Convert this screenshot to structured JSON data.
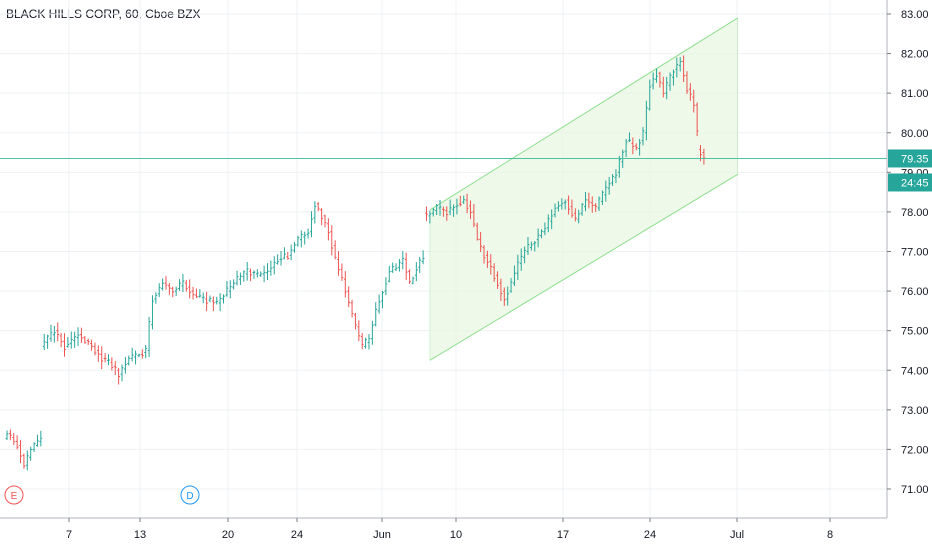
{
  "chart": {
    "title": "BLACK HILLS CORP, 60, Cboe BZX"
  },
  "colors": {
    "up": "#26a69a",
    "down": "#ef5350",
    "grid": "#eef0f3",
    "channel_line": "#8fe08f",
    "channel_fill": "#e8f7e3",
    "hline": "#4fc3a1",
    "price_tag": "#26a69a",
    "earnings": "#ef5350",
    "dividend": "#2196f3"
  },
  "labels": {
    "last_price": "79.35",
    "countdown": "24:45",
    "earnings_marker": "E",
    "dividend_marker": "D"
  },
  "chart_data": {
    "type": "ohlc",
    "symbol": "BLACK HILLS CORP",
    "interval": "60",
    "exchange": "Cboe BZX",
    "ylim": [
      70.25,
      83.25
    ],
    "y_ticks": [
      "71.00",
      "72.00",
      "73.00",
      "74.00",
      "75.00",
      "76.00",
      "77.00",
      "78.00",
      "79.00",
      "80.00",
      "81.00",
      "82.00",
      "83.00"
    ],
    "x_ticks": [
      "7",
      "13",
      "20",
      "24",
      "Jun",
      "10",
      "17",
      "24",
      "Jul",
      "8"
    ],
    "horizontal_line": 79.35,
    "anchors": [
      {
        "i": 0,
        "v": 72.4
      },
      {
        "i": 3,
        "v": 72.1
      },
      {
        "i": 5,
        "v": 71.6
      },
      {
        "i": 7,
        "v": 72.0
      },
      {
        "i": 10,
        "v": 72.3
      },
      {
        "i": 11,
        "v": 74.7
      },
      {
        "i": 14,
        "v": 75.0
      },
      {
        "i": 17,
        "v": 74.6
      },
      {
        "i": 21,
        "v": 74.9
      },
      {
        "i": 25,
        "v": 74.6
      },
      {
        "i": 28,
        "v": 74.3
      },
      {
        "i": 30,
        "v": 74.2
      },
      {
        "i": 33,
        "v": 73.9
      },
      {
        "i": 36,
        "v": 74.3
      },
      {
        "i": 39,
        "v": 74.4
      },
      {
        "i": 41,
        "v": 74.5
      },
      {
        "i": 43,
        "v": 75.8
      },
      {
        "i": 46,
        "v": 76.2
      },
      {
        "i": 49,
        "v": 76.0
      },
      {
        "i": 52,
        "v": 76.2
      },
      {
        "i": 55,
        "v": 75.9
      },
      {
        "i": 58,
        "v": 75.8
      },
      {
        "i": 62,
        "v": 75.7
      },
      {
        "i": 65,
        "v": 76.0
      },
      {
        "i": 68,
        "v": 76.3
      },
      {
        "i": 71,
        "v": 76.5
      },
      {
        "i": 74,
        "v": 76.4
      },
      {
        "i": 77,
        "v": 76.5
      },
      {
        "i": 80,
        "v": 76.8
      },
      {
        "i": 83,
        "v": 76.9
      },
      {
        "i": 86,
        "v": 77.3
      },
      {
        "i": 89,
        "v": 77.5
      },
      {
        "i": 91,
        "v": 78.2
      },
      {
        "i": 93,
        "v": 77.9
      },
      {
        "i": 95,
        "v": 77.5
      },
      {
        "i": 97,
        "v": 76.8
      },
      {
        "i": 99,
        "v": 76.3
      },
      {
        "i": 101,
        "v": 75.7
      },
      {
        "i": 103,
        "v": 75.1
      },
      {
        "i": 105,
        "v": 74.6
      },
      {
        "i": 107,
        "v": 74.8
      },
      {
        "i": 109,
        "v": 75.5
      },
      {
        "i": 111,
        "v": 76.0
      },
      {
        "i": 113,
        "v": 76.5
      },
      {
        "i": 115,
        "v": 76.6
      },
      {
        "i": 117,
        "v": 76.8
      },
      {
        "i": 119,
        "v": 76.2
      },
      {
        "i": 121,
        "v": 76.6
      },
      {
        "i": 123,
        "v": 76.9
      },
      {
        "i": 124,
        "v": 77.9
      },
      {
        "i": 127,
        "v": 78.1
      },
      {
        "i": 130,
        "v": 78.0
      },
      {
        "i": 133,
        "v": 78.2
      },
      {
        "i": 135,
        "v": 78.3
      },
      {
        "i": 137,
        "v": 78.0
      },
      {
        "i": 139,
        "v": 77.3
      },
      {
        "i": 141,
        "v": 76.9
      },
      {
        "i": 143,
        "v": 76.6
      },
      {
        "i": 145,
        "v": 76.2
      },
      {
        "i": 147,
        "v": 75.8
      },
      {
        "i": 149,
        "v": 76.2
      },
      {
        "i": 151,
        "v": 76.7
      },
      {
        "i": 153,
        "v": 77.0
      },
      {
        "i": 156,
        "v": 77.3
      },
      {
        "i": 159,
        "v": 77.6
      },
      {
        "i": 162,
        "v": 78.1
      },
      {
        "i": 165,
        "v": 78.3
      },
      {
        "i": 168,
        "v": 77.8
      },
      {
        "i": 171,
        "v": 78.3
      },
      {
        "i": 174,
        "v": 78.1
      },
      {
        "i": 177,
        "v": 78.6
      },
      {
        "i": 180,
        "v": 79.0
      },
      {
        "i": 183,
        "v": 79.8
      },
      {
        "i": 186,
        "v": 79.6
      },
      {
        "i": 188,
        "v": 80.0
      },
      {
        "i": 190,
        "v": 81.2
      },
      {
        "i": 192,
        "v": 81.5
      },
      {
        "i": 194,
        "v": 81.0
      },
      {
        "i": 197,
        "v": 81.6
      },
      {
        "i": 199,
        "v": 81.8
      },
      {
        "i": 201,
        "v": 81.1
      },
      {
        "i": 203,
        "v": 80.7
      },
      {
        "i": 205,
        "v": 79.5
      },
      {
        "i": 206,
        "v": 79.3
      }
    ],
    "channel": {
      "start_index": 125,
      "end_index": 216,
      "upper": [
        78.05,
        82.9
      ],
      "lower": [
        74.25,
        78.95
      ]
    },
    "events": [
      {
        "type": "earnings",
        "label": "E",
        "index": 3
      },
      {
        "type": "dividend",
        "label": "D",
        "index": 56
      }
    ]
  }
}
